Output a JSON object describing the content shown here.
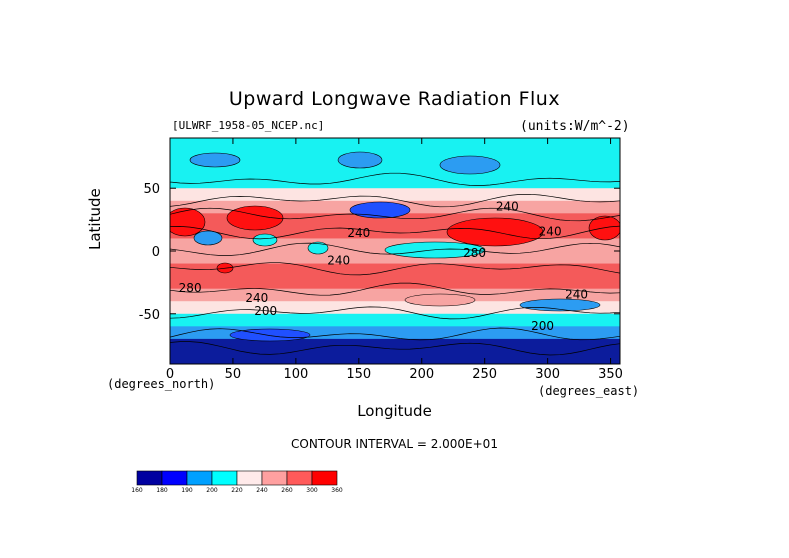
{
  "chart_data": {
    "type": "heatmap",
    "title": "Upward Longwave Radiation Flux",
    "file_label": "[ULWRF_1958-05_NCEP.nc]",
    "units_label": "(units:W/m^-2)",
    "xlabel": "Longitude",
    "ylabel": "Latitude",
    "x_unit_caption": "(degrees_east)",
    "y_unit_caption": "(degrees_north)",
    "xlim": [
      0,
      357.5
    ],
    "ylim": [
      -90,
      90
    ],
    "x_ticks": [
      0,
      50,
      100,
      150,
      200,
      250,
      300,
      350
    ],
    "y_ticks": [
      -50,
      0,
      50
    ],
    "contour_interval_text": "CONTOUR INTERVAL = 2.000E+01",
    "contour_labels": [
      {
        "text": "240",
        "lon": 268,
        "lat": 35
      },
      {
        "text": "240",
        "lon": 302,
        "lat": 15
      },
      {
        "text": "240",
        "lon": 150,
        "lat": 14
      },
      {
        "text": "240",
        "lon": 134,
        "lat": -8
      },
      {
        "text": "280",
        "lon": 242,
        "lat": -2
      },
      {
        "text": "280",
        "lon": 16,
        "lat": -30
      },
      {
        "text": "240",
        "lon": 69,
        "lat": -38
      },
      {
        "text": "200",
        "lon": 76,
        "lat": -48
      },
      {
        "text": "240",
        "lon": 323,
        "lat": -35
      },
      {
        "text": "200",
        "lon": 296,
        "lat": -60
      }
    ],
    "colorbar": {
      "levels": [
        160,
        180,
        190,
        200,
        220,
        240,
        260,
        300,
        360
      ],
      "level_labels": [
        "160",
        "180",
        "190",
        "200",
        "220",
        "240",
        "260",
        "300",
        "360"
      ],
      "colors": [
        "#0000a0",
        "#0000ff",
        "#00a0ff",
        "#00ffff",
        "#ffeaea",
        "#ffa0a0",
        "#ff5a5a",
        "#ff0000"
      ]
    },
    "colors": {
      "band_dark_blue": "#0c1c9c",
      "band_blue": "#2050ff",
      "band_light_blue": "#2c9cf2",
      "band_cyan": "#18f2f2",
      "band_pale_pink": "#fde4e2",
      "band_pink": "#f7a4a2",
      "band_red": "#f45a5a",
      "band_bright_red": "#ff1010"
    },
    "field_by_latitude": {
      "lat": [
        90,
        80,
        70,
        60,
        50,
        40,
        30,
        20,
        10,
        0,
        -10,
        -20,
        -30,
        -40,
        -50,
        -60,
        -70,
        -80,
        -90
      ],
      "flux": [
        205,
        212,
        205,
        212,
        220,
        232,
        262,
        275,
        245,
        250,
        258,
        270,
        266,
        246,
        222,
        205,
        178,
        168,
        165
      ]
    }
  }
}
